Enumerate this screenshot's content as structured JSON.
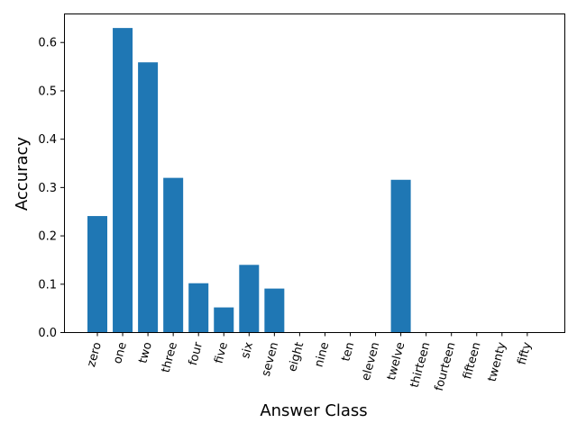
{
  "chart_data": {
    "type": "bar",
    "categories": [
      "zero",
      "one",
      "two",
      "three",
      "four",
      "five",
      "six",
      "seven",
      "eight",
      "nine",
      "ten",
      "eleven",
      "twelve",
      "thirteen",
      "fourteen",
      "fifteen",
      "twenty",
      "fifty"
    ],
    "values": [
      0.241,
      0.63,
      0.559,
      0.32,
      0.102,
      0.052,
      0.14,
      0.091,
      0,
      0,
      0,
      0,
      0.316,
      0,
      0,
      0,
      0,
      0
    ],
    "xlabel": "Answer Class",
    "ylabel": "Accuracy",
    "ylim": [
      0,
      0.66
    ],
    "yticks": [
      "0.0",
      "0.1",
      "0.2",
      "0.3",
      "0.4",
      "0.5",
      "0.6"
    ],
    "bar_color": "#1f77b4",
    "grid": false,
    "legend": "none"
  }
}
